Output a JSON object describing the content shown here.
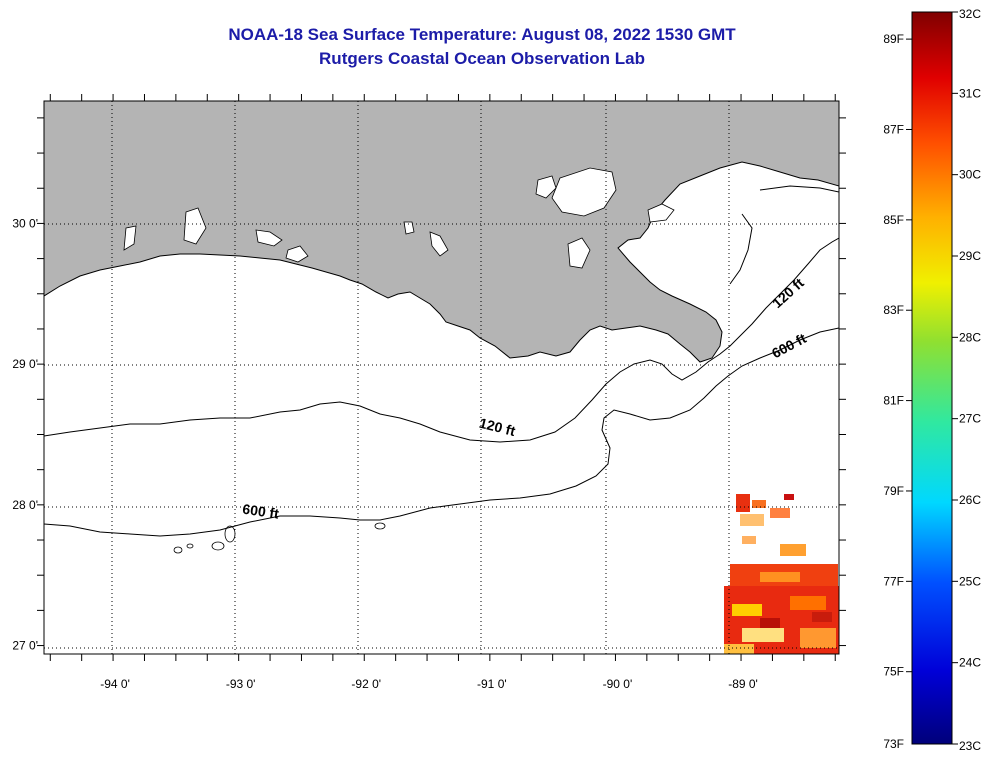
{
  "title": "NOAA-18 Sea Surface Temperature:  August 08, 2022 1530 GMT",
  "subtitle": "Rutgers Coastal Ocean Observation Lab",
  "map": {
    "lon_range": [
      -94.55,
      -88.22
    ],
    "lat_range": [
      26.94,
      30.87
    ],
    "grid": true,
    "land_color": "#b4b4b4",
    "lat_ticks": [
      {
        "value": 30,
        "label": "30 0'"
      },
      {
        "value": 29,
        "label": "29 0'"
      },
      {
        "value": 28,
        "label": "28 0'"
      },
      {
        "value": 27,
        "label": "27 0'"
      }
    ],
    "lon_ticks": [
      {
        "value": -94,
        "label": "-94 0'"
      },
      {
        "value": -93,
        "label": "-93 0'"
      },
      {
        "value": -92,
        "label": "-92 0'"
      },
      {
        "value": -91,
        "label": "-91 0'"
      },
      {
        "value": -90,
        "label": "-90 0'"
      },
      {
        "value": -89,
        "label": "-89 0'"
      }
    ],
    "contour_labels": [
      {
        "text": "120 ft",
        "lon": -90.95,
        "lat": 28.52
      },
      {
        "text": "600 ft",
        "lon": -92.83,
        "lat": 27.92
      },
      {
        "text": "120 ft",
        "lon": -88.6,
        "lat": 29.48
      },
      {
        "text": "600 ft",
        "lon": -88.6,
        "lat": 29.1
      }
    ]
  },
  "colorbar": {
    "min_c": 23,
    "max_c": 32,
    "celsius_labels": [
      "32C",
      "31C",
      "30C",
      "29C",
      "28C",
      "27C",
      "26C",
      "25C",
      "24C",
      "23C"
    ],
    "fahrenheit_labels": [
      "89F",
      "87F",
      "85F",
      "83F",
      "81F",
      "79F",
      "77F",
      "75F",
      "73F"
    ]
  }
}
